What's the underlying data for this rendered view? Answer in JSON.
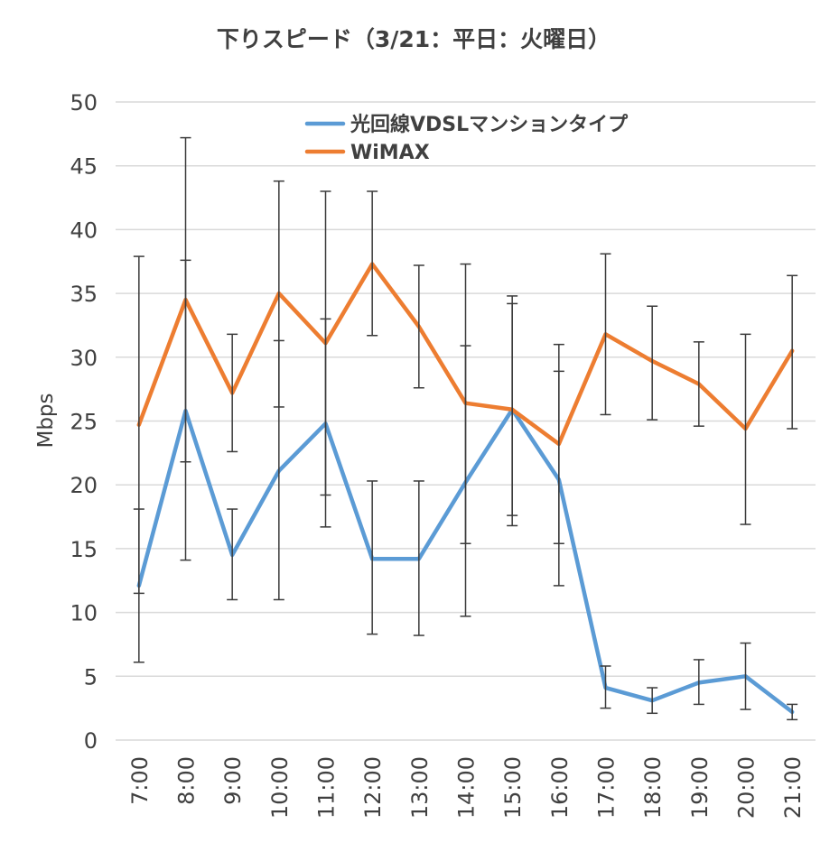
{
  "chart_data": {
    "type": "line",
    "title": "下りスピード（3/21：平日：火曜日）",
    "xlabel": "",
    "ylabel": "Mbps",
    "ylim": [
      0,
      50
    ],
    "yticks": [
      0,
      5,
      10,
      15,
      20,
      25,
      30,
      35,
      40,
      45,
      50
    ],
    "grid": true,
    "legend_position": "top-center",
    "categories": [
      "7:00",
      "8:00",
      "9:00",
      "10:00",
      "11:00",
      "12:00",
      "13:00",
      "14:00",
      "15:00",
      "16:00",
      "17:00",
      "18:00",
      "19:00",
      "20:00",
      "21:00"
    ],
    "series": [
      {
        "name": "光回線VDSLマンションタイプ",
        "color": "#5b9bd5",
        "values": [
          12.1,
          25.8,
          14.5,
          21.1,
          24.8,
          14.2,
          14.2,
          20.2,
          25.9,
          20.4,
          4.1,
          3.1,
          4.5,
          5.0,
          2.2
        ],
        "err_low": [
          6.1,
          14.1,
          11.0,
          11.0,
          16.7,
          8.3,
          8.2,
          9.7,
          17.6,
          12.1,
          2.5,
          2.1,
          2.8,
          2.4,
          1.6
        ],
        "err_high": [
          18.1,
          37.6,
          18.1,
          31.3,
          33.0,
          20.3,
          20.3,
          30.9,
          34.2,
          28.9,
          5.8,
          4.1,
          6.3,
          7.6,
          2.8
        ]
      },
      {
        "name": "WiMAX",
        "color": "#ed7d31",
        "values": [
          24.7,
          34.5,
          27.2,
          35.0,
          31.1,
          37.3,
          32.4,
          26.4,
          25.9,
          23.2,
          31.8,
          29.7,
          27.9,
          24.4,
          30.5
        ],
        "err_low": [
          11.5,
          21.8,
          22.6,
          26.1,
          19.2,
          31.7,
          27.6,
          15.4,
          16.8,
          15.4,
          25.5,
          25.1,
          24.6,
          16.9,
          24.4
        ],
        "err_high": [
          37.9,
          47.2,
          31.8,
          43.8,
          43.0,
          43.0,
          37.2,
          37.3,
          34.8,
          31.0,
          38.1,
          34.0,
          31.2,
          31.8,
          36.4
        ]
      }
    ]
  }
}
